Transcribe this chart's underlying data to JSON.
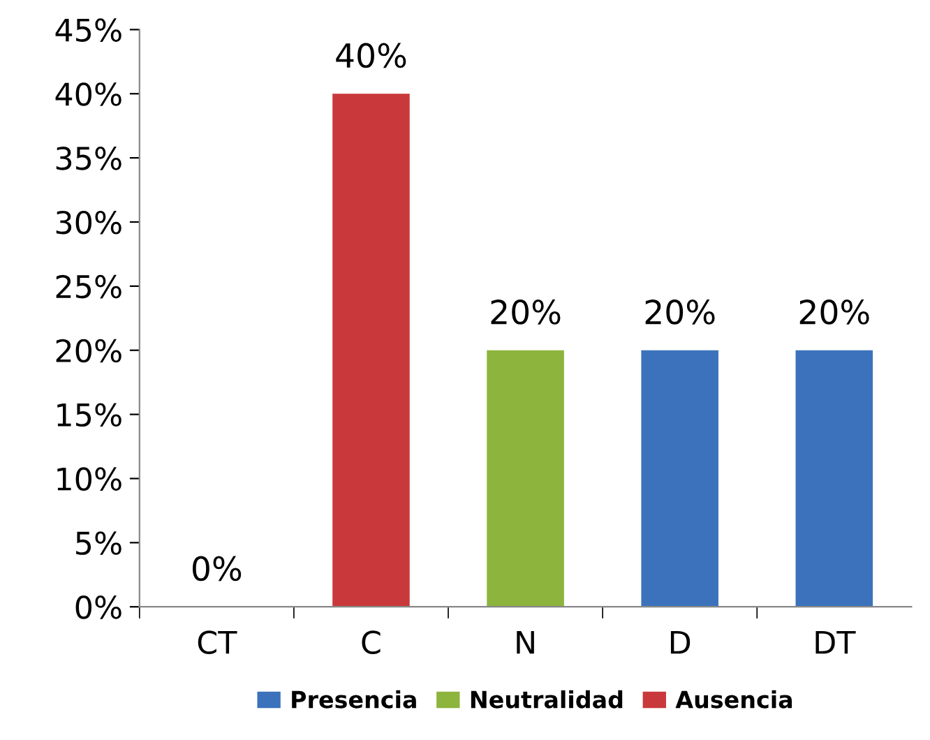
{
  "chart_data": {
    "type": "bar",
    "categories": [
      "CT",
      "C",
      "N",
      "D",
      "DT"
    ],
    "series": [
      {
        "name": "Presencia",
        "color": "#3b72bb",
        "values": [
          0,
          null,
          null,
          20,
          20
        ],
        "value_labels": [
          "0%",
          null,
          null,
          "20%",
          "20%"
        ]
      },
      {
        "name": "Neutralidad",
        "color": "#8db43c",
        "values": [
          null,
          null,
          20,
          null,
          null
        ],
        "value_labels": [
          null,
          null,
          "20%",
          null,
          null
        ]
      },
      {
        "name": "Ausencia",
        "color": "#c9393b",
        "values": [
          null,
          40,
          null,
          null,
          null
        ],
        "value_labels": [
          null,
          "40%",
          null,
          null,
          null
        ]
      }
    ],
    "ylim": [
      0,
      45
    ],
    "yticks": [
      {
        "value": 0,
        "label": "0%"
      },
      {
        "value": 5,
        "label": "5%"
      },
      {
        "value": 10,
        "label": "10%"
      },
      {
        "value": 15,
        "label": "15%"
      },
      {
        "value": 20,
        "label": "20%"
      },
      {
        "value": 25,
        "label": "25%"
      },
      {
        "value": 30,
        "label": "30%"
      },
      {
        "value": 35,
        "label": "35%"
      },
      {
        "value": 40,
        "label": "40%"
      },
      {
        "value": 45,
        "label": "45%"
      }
    ],
    "grid": false,
    "legend": "bottom"
  }
}
